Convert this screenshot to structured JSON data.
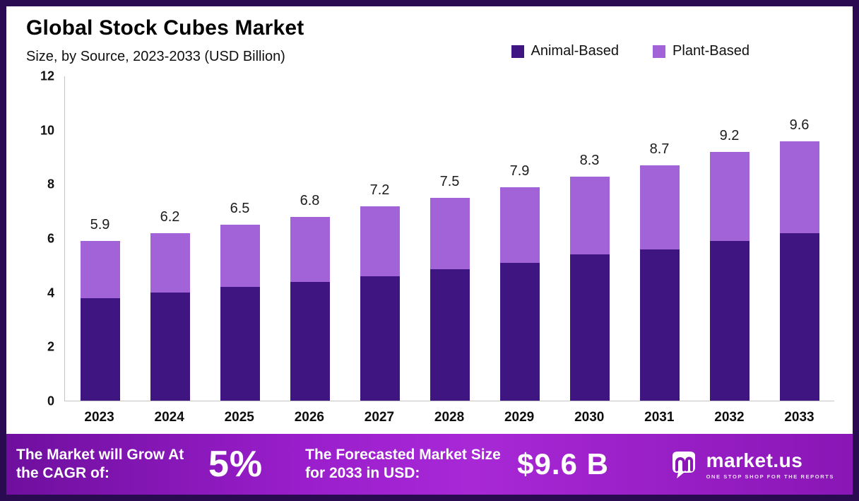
{
  "title": "Global Stock Cubes Market",
  "subtitle": "Size, by Source, 2023-2033 (USD Billion)",
  "legend": [
    {
      "label": "Animal-Based",
      "color": "#3f1582"
    },
    {
      "label": "Plant-Based",
      "color": "#a263d8"
    }
  ],
  "chart_data": {
    "type": "bar",
    "stacked": true,
    "title": "Global Stock Cubes Market Size, by Source, 2023-2033 (USD Billion)",
    "categories": [
      "2023",
      "2024",
      "2025",
      "2026",
      "2027",
      "2028",
      "2029",
      "2030",
      "2031",
      "2032",
      "2033"
    ],
    "series": [
      {
        "name": "Animal-Based",
        "color": "#3f1582",
        "values": [
          3.8,
          4.0,
          4.2,
          4.4,
          4.6,
          4.85,
          5.1,
          5.4,
          5.6,
          5.9,
          6.2
        ]
      },
      {
        "name": "Plant-Based",
        "color": "#a263d8",
        "values": [
          2.1,
          2.2,
          2.3,
          2.4,
          2.6,
          2.65,
          2.8,
          2.9,
          3.1,
          3.3,
          3.4
        ]
      }
    ],
    "totals": [
      5.9,
      6.2,
      6.5,
      6.8,
      7.2,
      7.5,
      7.9,
      8.3,
      8.7,
      9.2,
      9.6
    ],
    "xlabel": "",
    "ylabel": "",
    "ylim": [
      0,
      12
    ],
    "yticks": [
      0,
      2,
      4,
      6,
      8,
      10,
      12
    ],
    "grid": false,
    "legend_position": "top-right"
  },
  "footer": {
    "cagr_label": "The Market will Grow At the CAGR of:",
    "cagr_value": "5%",
    "forecast_label": "The Forecasted Market Size for 2033 in USD:",
    "forecast_value": "$9.6 B",
    "brand": "market.us",
    "brand_tagline": "ONE STOP SHOP FOR THE REPORTS",
    "logo_icon": "marketus-logo-icon"
  }
}
